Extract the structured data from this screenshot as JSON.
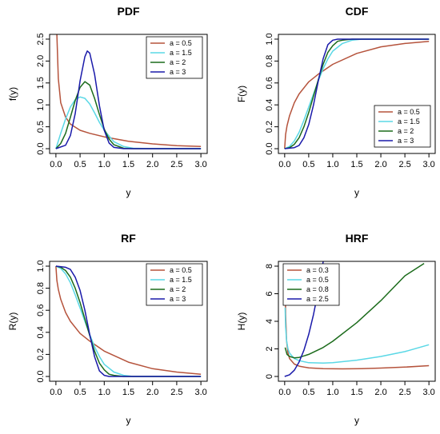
{
  "chart_data": [
    {
      "type": "line",
      "title": "PDF",
      "xlabel": "y",
      "ylabel": "f(y)",
      "xlim": [
        0,
        3
      ],
      "ylim": [
        0,
        2.5
      ],
      "xticks": [
        "0.0",
        "0.5",
        "1.0",
        "1.5",
        "2.0",
        "2.5",
        "3.0"
      ],
      "yticks": [
        "0.0",
        "0.5",
        "1.0",
        "1.5",
        "2.0",
        "2.5"
      ],
      "legend_position": "top-right",
      "grid": false,
      "series": [
        {
          "name": "a = 0.5",
          "color": "#b5533c",
          "x": [
            0.02,
            0.05,
            0.1,
            0.2,
            0.3,
            0.5,
            0.7,
            1.0,
            1.5,
            2.0,
            2.5,
            3.0
          ],
          "y": [
            2.6,
            1.6,
            1.05,
            0.72,
            0.56,
            0.42,
            0.35,
            0.27,
            0.17,
            0.11,
            0.07,
            0.05
          ]
        },
        {
          "name": "a = 1.5",
          "color": "#5ad8e6",
          "x": [
            0.0,
            0.1,
            0.2,
            0.3,
            0.4,
            0.5,
            0.6,
            0.7,
            0.8,
            0.9,
            1.0,
            1.2,
            1.4,
            1.6,
            2.0,
            3.0
          ],
          "y": [
            0.0,
            0.35,
            0.68,
            0.95,
            1.12,
            1.18,
            1.15,
            1.02,
            0.82,
            0.6,
            0.42,
            0.16,
            0.05,
            0.01,
            0.0,
            0.0
          ]
        },
        {
          "name": "a = 2",
          "color": "#1b6b1b",
          "x": [
            0.0,
            0.1,
            0.2,
            0.3,
            0.4,
            0.5,
            0.6,
            0.7,
            0.8,
            0.9,
            1.0,
            1.1,
            1.2,
            1.4,
            1.6,
            3.0
          ],
          "y": [
            0.0,
            0.12,
            0.35,
            0.72,
            1.1,
            1.4,
            1.53,
            1.45,
            1.15,
            0.78,
            0.45,
            0.22,
            0.09,
            0.01,
            0.0,
            0.0
          ]
        },
        {
          "name": "a = 3",
          "color": "#1a1aaa",
          "x": [
            0.0,
            0.2,
            0.3,
            0.4,
            0.5,
            0.6,
            0.65,
            0.7,
            0.8,
            0.9,
            1.0,
            1.1,
            1.2,
            1.4,
            3.0
          ],
          "y": [
            0.0,
            0.08,
            0.3,
            0.8,
            1.55,
            2.1,
            2.23,
            2.18,
            1.7,
            0.98,
            0.42,
            0.13,
            0.03,
            0.0,
            0.0
          ]
        }
      ]
    },
    {
      "type": "line",
      "title": "CDF",
      "xlabel": "y",
      "ylabel": "F(y)",
      "xlim": [
        0,
        3
      ],
      "ylim": [
        0,
        1
      ],
      "xticks": [
        "0.0",
        "0.5",
        "1.0",
        "1.5",
        "2.0",
        "2.5",
        "3.0"
      ],
      "yticks": [
        "0.0",
        "0.2",
        "0.4",
        "0.6",
        "0.8",
        "1.0"
      ],
      "legend_position": "bottom-right",
      "grid": false,
      "series": [
        {
          "name": "a = 0.5",
          "color": "#b5533c",
          "x": [
            0.0,
            0.02,
            0.05,
            0.1,
            0.2,
            0.3,
            0.5,
            0.7,
            1.0,
            1.5,
            2.0,
            2.5,
            3.0
          ],
          "y": [
            0.0,
            0.13,
            0.21,
            0.3,
            0.42,
            0.5,
            0.61,
            0.68,
            0.77,
            0.87,
            0.93,
            0.96,
            0.98
          ]
        },
        {
          "name": "a = 1.5",
          "color": "#5ad8e6",
          "x": [
            0.0,
            0.1,
            0.2,
            0.3,
            0.4,
            0.5,
            0.6,
            0.7,
            0.8,
            0.9,
            1.0,
            1.2,
            1.4,
            1.6,
            3.0
          ],
          "y": [
            0.0,
            0.02,
            0.07,
            0.15,
            0.26,
            0.38,
            0.5,
            0.62,
            0.73,
            0.82,
            0.89,
            0.96,
            0.99,
            1.0,
            1.0
          ]
        },
        {
          "name": "a = 2",
          "color": "#1b6b1b",
          "x": [
            0.0,
            0.1,
            0.2,
            0.3,
            0.4,
            0.5,
            0.6,
            0.7,
            0.8,
            0.9,
            1.0,
            1.1,
            1.2,
            1.4,
            3.0
          ],
          "y": [
            0.0,
            0.01,
            0.04,
            0.1,
            0.2,
            0.33,
            0.48,
            0.63,
            0.77,
            0.88,
            0.94,
            0.98,
            0.99,
            1.0,
            1.0
          ]
        },
        {
          "name": "a = 3",
          "color": "#1a1aaa",
          "x": [
            0.0,
            0.2,
            0.3,
            0.4,
            0.5,
            0.6,
            0.7,
            0.8,
            0.9,
            1.0,
            1.1,
            1.2,
            3.0
          ],
          "y": [
            0.0,
            0.01,
            0.03,
            0.1,
            0.22,
            0.4,
            0.62,
            0.82,
            0.95,
            0.99,
            1.0,
            1.0,
            1.0
          ]
        }
      ]
    },
    {
      "type": "line",
      "title": "RF",
      "xlabel": "y",
      "ylabel": "R(y)",
      "xlim": [
        0,
        3
      ],
      "ylim": [
        0,
        1
      ],
      "xticks": [
        "0.0",
        "0.5",
        "1.0",
        "1.5",
        "2.0",
        "2.5",
        "3.0"
      ],
      "yticks": [
        "0.0",
        "0.2",
        "0.4",
        "0.6",
        "0.8",
        "1.0"
      ],
      "legend_position": "top-right",
      "grid": false,
      "series": [
        {
          "name": "a = 0.5",
          "color": "#b5533c",
          "x": [
            0.0,
            0.02,
            0.05,
            0.1,
            0.2,
            0.3,
            0.5,
            0.7,
            1.0,
            1.5,
            2.0,
            2.5,
            3.0
          ],
          "y": [
            1.0,
            0.87,
            0.79,
            0.7,
            0.58,
            0.5,
            0.39,
            0.32,
            0.23,
            0.13,
            0.07,
            0.04,
            0.02
          ]
        },
        {
          "name": "a = 1.5",
          "color": "#5ad8e6",
          "x": [
            0.0,
            0.1,
            0.2,
            0.3,
            0.4,
            0.5,
            0.6,
            0.7,
            0.8,
            0.9,
            1.0,
            1.2,
            1.4,
            1.6,
            3.0
          ],
          "y": [
            1.0,
            0.98,
            0.93,
            0.85,
            0.74,
            0.62,
            0.5,
            0.38,
            0.27,
            0.18,
            0.11,
            0.04,
            0.01,
            0.0,
            0.0
          ]
        },
        {
          "name": "a = 2",
          "color": "#1b6b1b",
          "x": [
            0.0,
            0.1,
            0.2,
            0.3,
            0.4,
            0.5,
            0.6,
            0.7,
            0.8,
            0.9,
            1.0,
            1.1,
            1.2,
            1.4,
            3.0
          ],
          "y": [
            1.0,
            0.99,
            0.96,
            0.9,
            0.8,
            0.67,
            0.52,
            0.37,
            0.23,
            0.12,
            0.06,
            0.02,
            0.01,
            0.0,
            0.0
          ]
        },
        {
          "name": "a = 3",
          "color": "#1a1aaa",
          "x": [
            0.0,
            0.2,
            0.3,
            0.4,
            0.5,
            0.6,
            0.7,
            0.8,
            0.9,
            1.0,
            1.1,
            1.2,
            3.0
          ],
          "y": [
            1.0,
            0.99,
            0.97,
            0.9,
            0.78,
            0.6,
            0.38,
            0.18,
            0.05,
            0.01,
            0.0,
            0.0,
            0.0
          ]
        }
      ]
    },
    {
      "type": "line",
      "title": "HRF",
      "xlabel": "y",
      "ylabel": "H(y)",
      "xlim": [
        0,
        3
      ],
      "ylim": [
        0,
        8
      ],
      "xticks": [
        "0.0",
        "0.5",
        "1.0",
        "1.5",
        "2.0",
        "2.5",
        "3.0"
      ],
      "yticks": [
        "0",
        "2",
        "4",
        "6",
        "8"
      ],
      "legend_position": "top-left",
      "grid": false,
      "series": [
        {
          "name": "a = 0.3",
          "color": "#b5533c",
          "x": [
            0.01,
            0.02,
            0.04,
            0.07,
            0.1,
            0.2,
            0.3,
            0.5,
            0.8,
            1.2,
            1.6,
            2.0,
            2.5,
            3.0
          ],
          "y": [
            7.6,
            4.5,
            2.6,
            1.7,
            1.3,
            0.9,
            0.75,
            0.62,
            0.56,
            0.55,
            0.57,
            0.61,
            0.68,
            0.78
          ]
        },
        {
          "name": "a = 0.5",
          "color": "#5ad8e6",
          "x": [
            0.01,
            0.02,
            0.04,
            0.07,
            0.1,
            0.2,
            0.3,
            0.5,
            0.8,
            1.0,
            1.5,
            2.0,
            2.5,
            3.0
          ],
          "y": [
            5.0,
            3.6,
            2.6,
            2.0,
            1.7,
            1.3,
            1.15,
            1.0,
            0.97,
            1.0,
            1.18,
            1.45,
            1.8,
            2.3
          ]
        },
        {
          "name": "a = 0.8",
          "color": "#1b6b1b",
          "x": [
            0.01,
            0.05,
            0.1,
            0.2,
            0.3,
            0.5,
            0.8,
            1.0,
            1.5,
            2.0,
            2.5,
            2.9
          ],
          "y": [
            2.1,
            1.6,
            1.45,
            1.35,
            1.38,
            1.6,
            2.1,
            2.55,
            3.9,
            5.5,
            7.3,
            8.2
          ]
        },
        {
          "name": "a = 2.5",
          "color": "#1a1aaa",
          "x": [
            0.0,
            0.1,
            0.2,
            0.3,
            0.4,
            0.5,
            0.6,
            0.7,
            0.75,
            0.8,
            0.83
          ],
          "y": [
            0.0,
            0.12,
            0.45,
            1.05,
            1.9,
            3.05,
            4.5,
            6.25,
            7.25,
            8.3,
            8.9
          ]
        }
      ]
    }
  ]
}
